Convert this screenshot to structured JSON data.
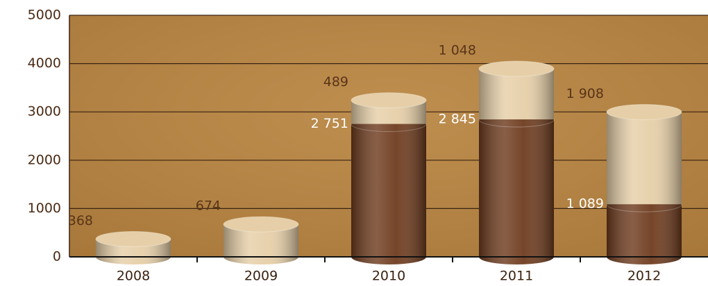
{
  "chart_data": {
    "type": "bar",
    "stacked": true,
    "categories": [
      "2008",
      "2009",
      "2010",
      "2011",
      "2012"
    ],
    "series": [
      {
        "color": "#6e3b1e",
        "values": [
          null,
          null,
          2751,
          2845,
          1089
        ],
        "value_labels": [
          null,
          null,
          "2 751",
          "2 845",
          "1 089"
        ],
        "label_color": "#ffffff"
      },
      {
        "color": "#e6cfa8",
        "values": [
          368,
          674,
          489,
          1048,
          1908
        ],
        "value_labels": [
          "368",
          "674",
          "489",
          "1 048",
          "1 908"
        ],
        "label_color": "#5a3418"
      }
    ],
    "ylim": [
      0,
      5000
    ],
    "yticks": [
      0,
      1000,
      2000,
      3000,
      4000,
      5000
    ],
    "grid": true,
    "background": "#b8843f"
  }
}
